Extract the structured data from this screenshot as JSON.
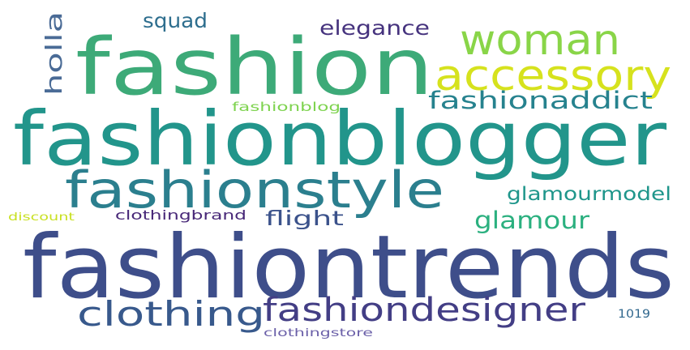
{
  "words": [
    {
      "id": "fashion",
      "text": "fashion",
      "color": "#3daa78"
    },
    {
      "id": "woman",
      "text": "woman",
      "color": "#89d548"
    },
    {
      "id": "accessory",
      "text": "accessory",
      "color": "#d6e21d"
    },
    {
      "id": "fashionblogger",
      "text": "fashionblogger",
      "color": "#22958b"
    },
    {
      "id": "fashionstyle",
      "text": "fashionstyle",
      "color": "#2b7f8e"
    },
    {
      "id": "fashiontrends",
      "text": "fashiontrends",
      "color": "#3e4e8a"
    },
    {
      "id": "clothing",
      "text": "clothing",
      "color": "#38598c"
    },
    {
      "id": "fashiondesigner",
      "text": "fashiondesigner",
      "color": "#433e85"
    },
    {
      "id": "holla",
      "text": "holla",
      "color": "#4a6b96"
    },
    {
      "id": "squad",
      "text": "squad",
      "color": "#2e6e8e"
    },
    {
      "id": "elegance",
      "text": "elegance",
      "color": "#46337e"
    },
    {
      "id": "fashionaddict",
      "text": "fashionaddict",
      "color": "#26828e"
    },
    {
      "id": "fashionblog",
      "text": "fashionblog",
      "color": "#7ed34f"
    },
    {
      "id": "glamourmodel",
      "text": "glamourmodel",
      "color": "#1f968b"
    },
    {
      "id": "glamour",
      "text": "glamour",
      "color": "#2bb07f"
    },
    {
      "id": "flight",
      "text": "flight",
      "color": "#3b528b"
    },
    {
      "id": "clothingbrand",
      "text": "clothingbrand",
      "color": "#482878"
    },
    {
      "id": "discount",
      "text": "discount",
      "color": "#c8e020"
    },
    {
      "id": "clothingstore",
      "text": "clothingstore",
      "color": "#6a5fa8"
    },
    {
      "id": "1019",
      "text": "1019",
      "color": "#31688e"
    }
  ]
}
